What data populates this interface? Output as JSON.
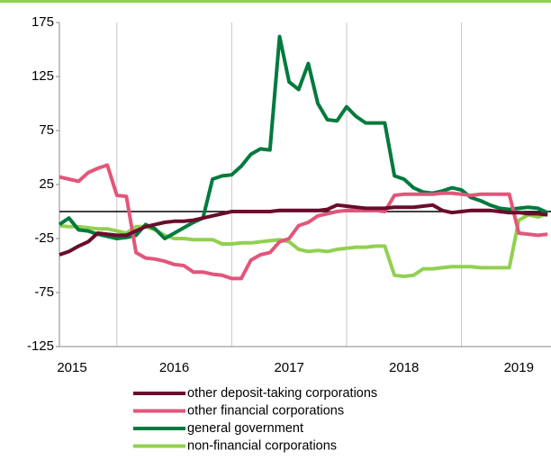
{
  "chart_data": {
    "type": "line",
    "x": [
      2015.5,
      2015.583,
      2015.667,
      2015.75,
      2015.833,
      2015.917,
      2016,
      2016.083,
      2016.167,
      2016.25,
      2016.333,
      2016.417,
      2016.5,
      2016.583,
      2016.667,
      2016.75,
      2016.833,
      2016.917,
      2017,
      2017.083,
      2017.167,
      2017.25,
      2017.333,
      2017.417,
      2017.5,
      2017.583,
      2017.667,
      2017.75,
      2017.833,
      2017.917,
      2018,
      2018.083,
      2018.167,
      2018.25,
      2018.333,
      2018.417,
      2018.5,
      2018.583,
      2018.667,
      2018.75,
      2018.833,
      2018.917,
      2019,
      2019.083,
      2019.167,
      2019.25,
      2019.333,
      2019.417,
      2019.5,
      2019.583,
      2019.667,
      2019.75
    ],
    "series": [
      {
        "name": "other deposit-taking corporations",
        "color": "#6b0b2d",
        "values": [
          -40,
          -37,
          -32,
          -28,
          -20,
          -21,
          -22,
          -22,
          -18,
          -14,
          -12,
          -10,
          -9,
          -9,
          -8,
          -6,
          -4,
          -2,
          0,
          0,
          0,
          0,
          0,
          1,
          1,
          1,
          1,
          1,
          2,
          6,
          5,
          4,
          3,
          3,
          3,
          4,
          4,
          4,
          5,
          6,
          1,
          -1,
          0,
          1,
          1,
          1,
          0,
          -1,
          -1,
          -2,
          -2,
          -3
        ]
      },
      {
        "name": "other financial corporations",
        "color": "#e2567a",
        "values": [
          32,
          30,
          28,
          36,
          40,
          43,
          15,
          14,
          -38,
          -43,
          -44,
          -46,
          -49,
          -50,
          -56,
          -56,
          -58,
          -59,
          -62,
          -62,
          -45,
          -40,
          -38,
          -28,
          -25,
          -13,
          -10,
          -4,
          -2,
          0,
          1,
          1,
          1,
          1,
          0,
          15,
          16,
          16,
          16,
          16,
          17,
          17,
          16,
          15,
          16,
          16,
          16,
          16,
          -20,
          -21,
          -22,
          -21
        ]
      },
      {
        "name": "general government",
        "color": "#007a3d",
        "values": [
          -12,
          -6,
          -17,
          -18,
          -21,
          -23,
          -25,
          -24,
          -22,
          -12,
          -16,
          -25,
          -20,
          -15,
          -10,
          -6,
          30,
          33,
          34,
          42,
          53,
          58,
          57,
          162,
          120,
          113,
          137,
          100,
          85,
          84,
          97,
          88,
          82,
          82,
          82,
          33,
          30,
          22,
          18,
          17,
          19,
          22,
          20,
          13,
          10,
          6,
          3,
          2,
          3,
          4,
          3,
          -1
        ]
      },
      {
        "name": "non-financial corporations",
        "color": "#92d050",
        "values": [
          -13,
          -14,
          -14,
          -15,
          -16,
          -16,
          -18,
          -20,
          -14,
          -14,
          -17,
          -22,
          -25,
          -25,
          -26,
          -26,
          -26,
          -30,
          -30,
          -29,
          -29,
          -28,
          -27,
          -26,
          -28,
          -35,
          -37,
          -36,
          -37,
          -35,
          -34,
          -33,
          -33,
          -32,
          -32,
          -59,
          -60,
          -59,
          -53,
          -53,
          -52,
          -51,
          -51,
          -51,
          -52,
          -52,
          -52,
          -52,
          -8,
          -3,
          -5,
          -2
        ]
      }
    ],
    "xlim": [
      2015.5,
      2019.78
    ],
    "xticks": [
      2015,
      2016,
      2017,
      2018,
      2019
    ],
    "ylim": [
      -125,
      175
    ],
    "yticks": [
      175,
      125,
      75,
      25,
      -25,
      -75,
      -125
    ],
    "grid": true
  }
}
